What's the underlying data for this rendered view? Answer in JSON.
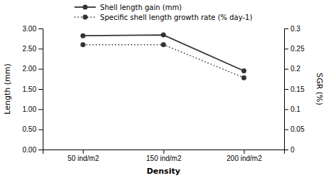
{
  "chart_data": {
    "type": "line",
    "categories": [
      "50 ind/m2",
      "150 ind/m2",
      "200 ind/m2"
    ],
    "x_label": "Density",
    "y_label": "Length (mm)",
    "y2_label": "SGR (%)",
    "ylim": [
      0,
      3.0
    ],
    "yticks": [
      {
        "value": 0.0,
        "label": "0.00"
      },
      {
        "value": 0.5,
        "label": "0.50"
      },
      {
        "value": 1.0,
        "label": "1.00"
      },
      {
        "value": 1.5,
        "label": "1.50"
      },
      {
        "value": 2.0,
        "label": "2.00"
      },
      {
        "value": 2.5,
        "label": "2.50"
      },
      {
        "value": 3.0,
        "label": "3.00"
      }
    ],
    "y2lim": [
      0,
      0.3
    ],
    "y2ticks": [
      0,
      0.05,
      0.1,
      0.15,
      0.2,
      0.25,
      0.3
    ],
    "grid": false,
    "legend": "top",
    "series": [
      {
        "name": "Shell length gain (mm)",
        "color": "#333333",
        "values": [
          2.82,
          2.84,
          1.95
        ],
        "marker": "circle",
        "line_style": "solid"
      },
      {
        "name": "Specific shell length growth rate (% day-1)",
        "color": "#333333",
        "values": [
          0.26,
          0.26,
          0.178
        ],
        "axis": "y2",
        "marker": "circle",
        "line_style": "dotted"
      }
    ]
  }
}
